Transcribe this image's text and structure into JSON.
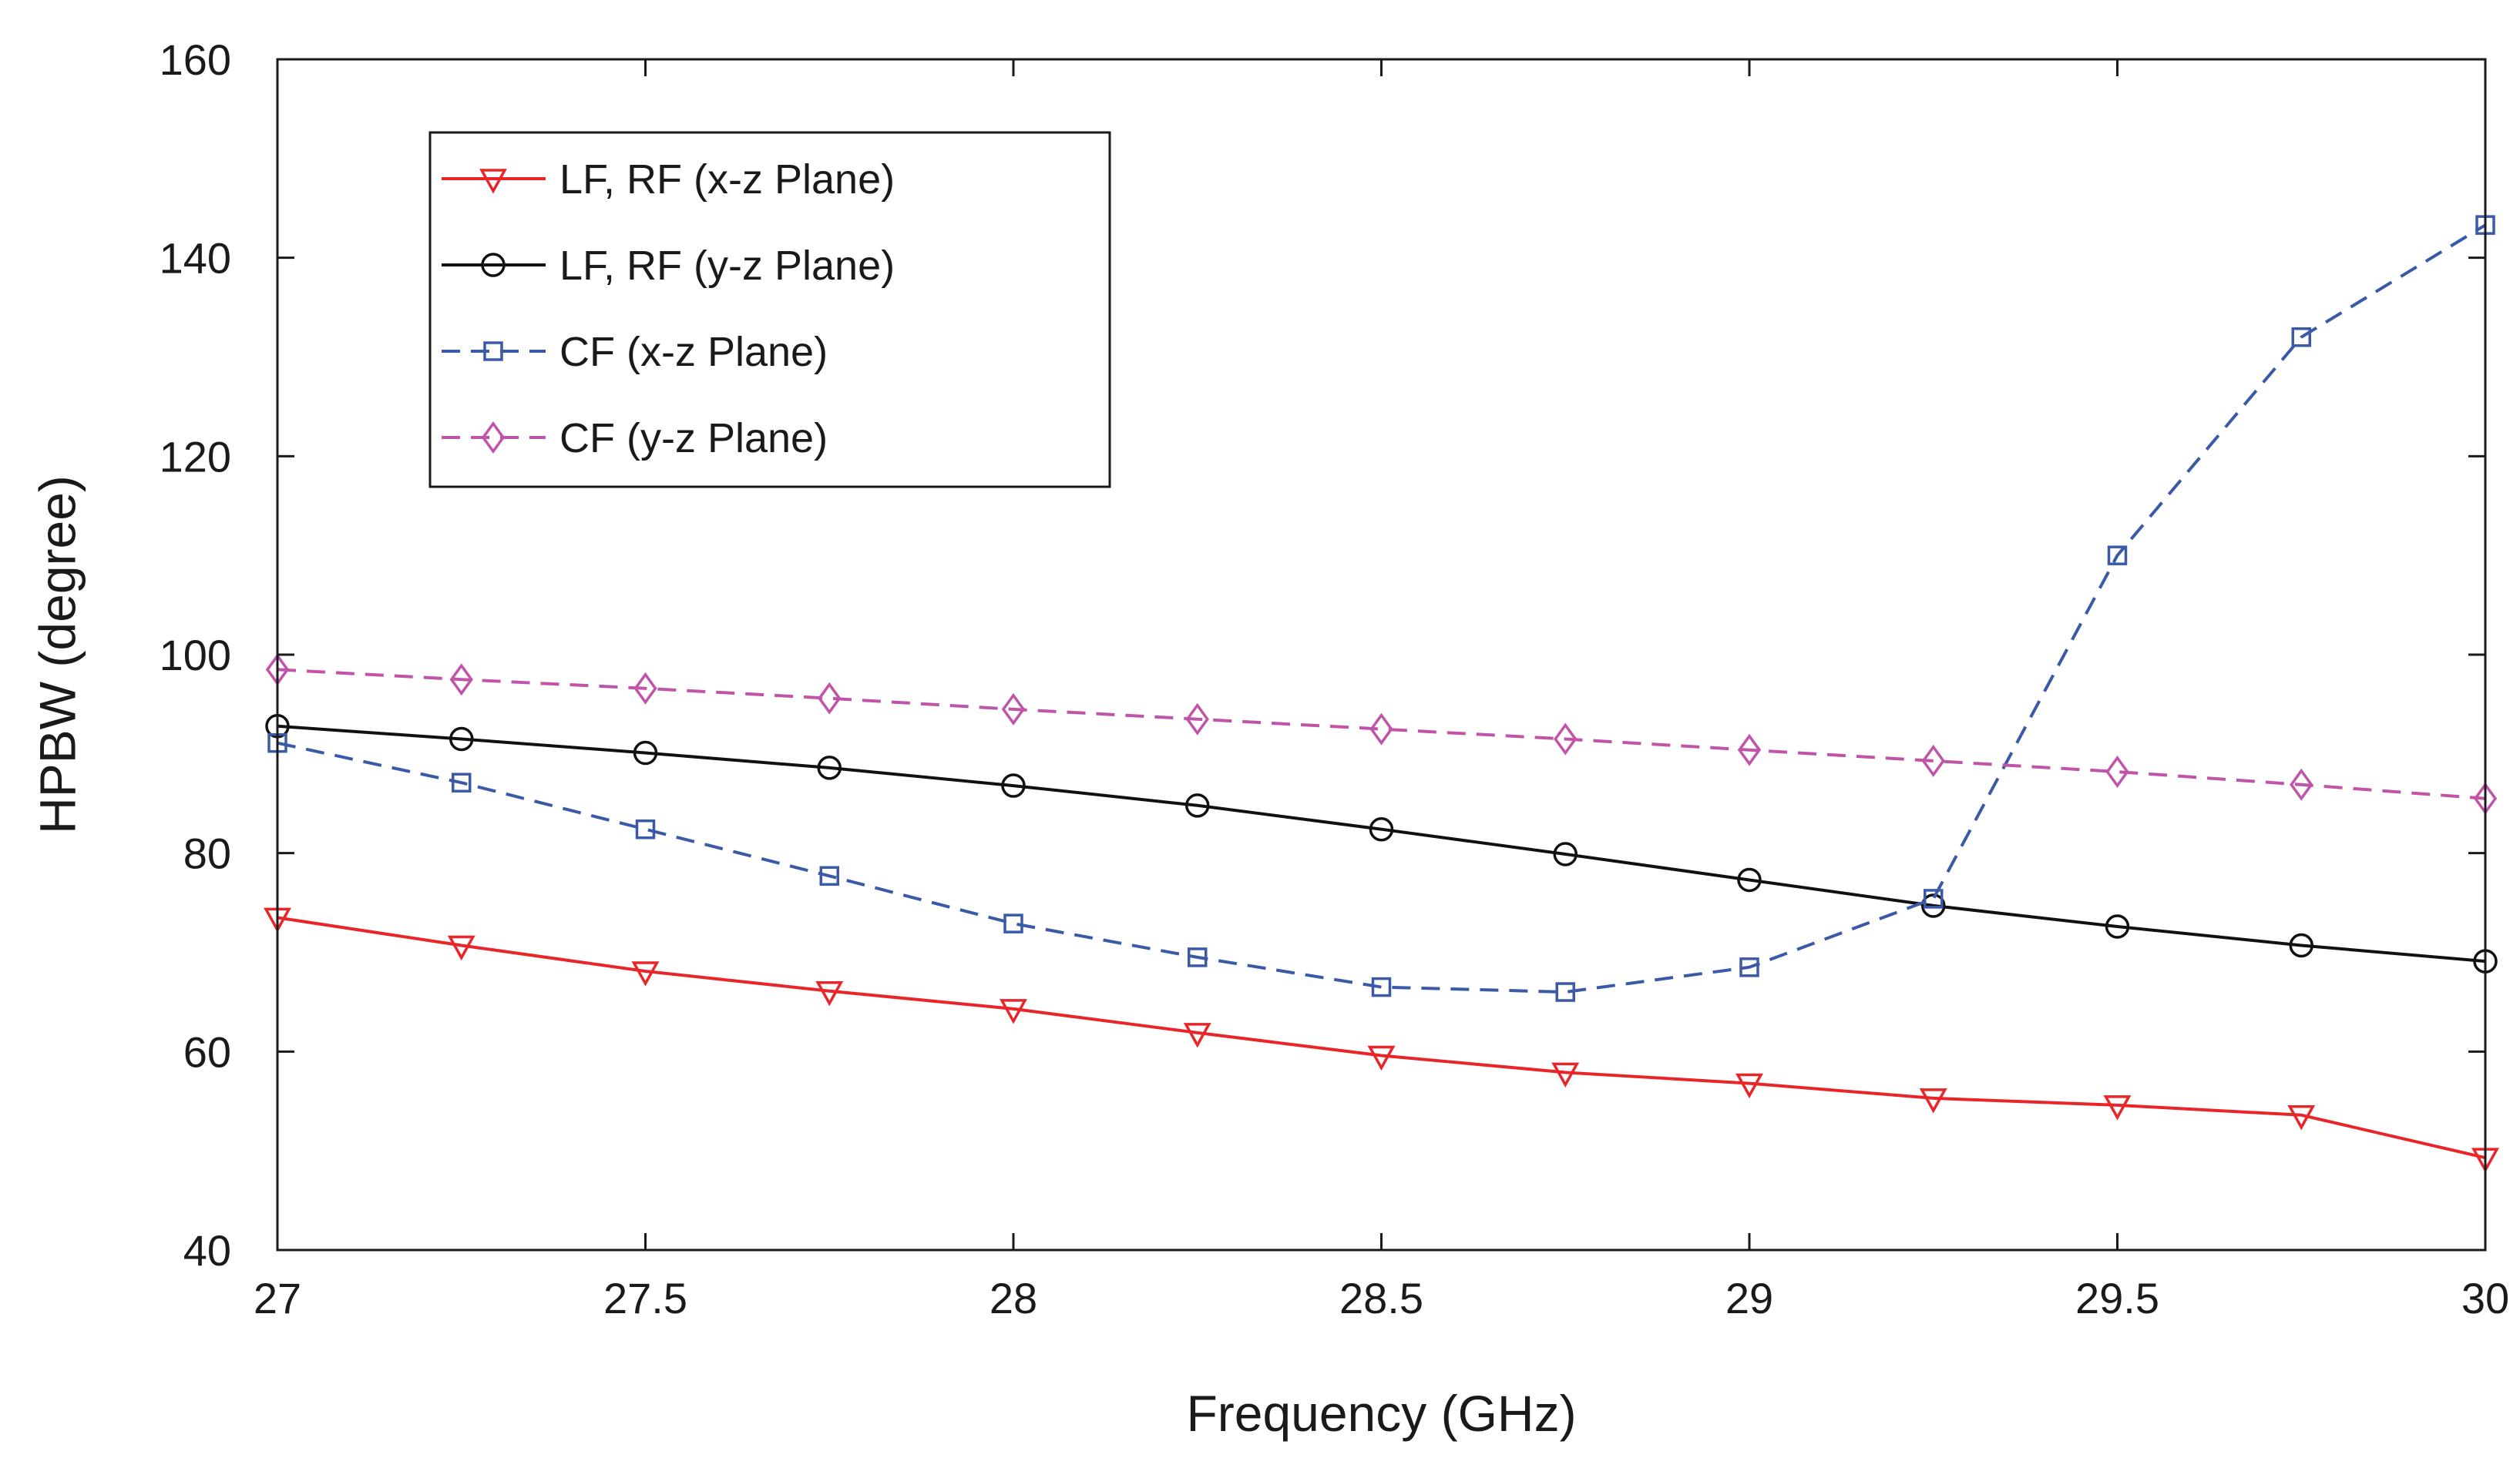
{
  "chart_data": {
    "type": "line",
    "title": "",
    "xlabel": "Frequency (GHz)",
    "ylabel": "HPBW (degree)",
    "xlim": [
      27,
      30
    ],
    "ylim": [
      40,
      160
    ],
    "x_ticks": [
      27,
      27.5,
      28,
      28.5,
      29,
      29.5,
      30
    ],
    "x_tick_labels": [
      "27",
      "27.5",
      "28",
      "28.5",
      "29",
      "29.5",
      "30"
    ],
    "y_ticks": [
      40,
      60,
      80,
      100,
      120,
      140,
      160
    ],
    "y_tick_labels": [
      "40",
      "60",
      "80",
      "100",
      "120",
      "140",
      "160"
    ],
    "grid": false,
    "legend_position": "top-left",
    "x": [
      27,
      27.25,
      27.5,
      27.75,
      28,
      28.25,
      28.5,
      28.75,
      29,
      29.25,
      29.5,
      29.75,
      30
    ],
    "series": [
      {
        "name": "LF, RF (x-z Plane)",
        "color": "#e8262a",
        "marker": "triangle-down",
        "dash": "solid",
        "values": [
          73.5,
          70.7,
          68.1,
          66.1,
          64.3,
          61.9,
          59.6,
          57.9,
          56.8,
          55.3,
          54.6,
          53.6,
          49.3
        ]
      },
      {
        "name": "LF, RF (y-z Plane)",
        "color": "#111111",
        "marker": "circle",
        "dash": "solid",
        "values": [
          92.8,
          91.5,
          90.1,
          88.6,
          86.8,
          84.8,
          82.4,
          79.9,
          77.3,
          74.7,
          72.6,
          70.7,
          69.1
        ]
      },
      {
        "name": "CF (x-z Plane)",
        "color": "#3a5aa8",
        "marker": "square",
        "dash": "dashed",
        "values": [
          91.1,
          87.1,
          82.4,
          77.7,
          72.9,
          69.5,
          66.5,
          66.0,
          68.5,
          75.4,
          110.0,
          132.0,
          143.3
        ]
      },
      {
        "name": "CF (y-z Plane)",
        "color": "#c054a8",
        "marker": "diamond",
        "dash": "dashed",
        "values": [
          98.5,
          97.5,
          96.6,
          95.6,
          94.5,
          93.5,
          92.5,
          91.5,
          90.4,
          89.3,
          88.2,
          86.9,
          85.5
        ]
      }
    ]
  }
}
